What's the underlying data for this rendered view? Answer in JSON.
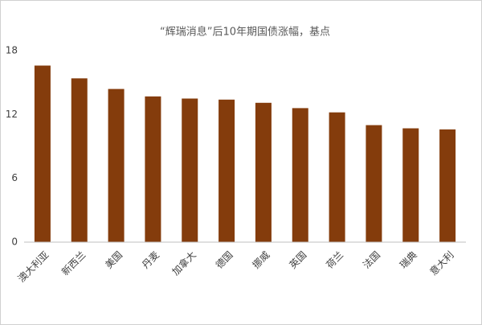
{
  "chart_data": {
    "type": "bar",
    "title": "“辉瑞消息”后10年期国债涨幅，基点",
    "categories": [
      "澳大利亚",
      "新西兰",
      "美国",
      "丹麦",
      "加拿大",
      "德国",
      "挪威",
      "英国",
      "荷兰",
      "法国",
      "瑞典",
      "意大利"
    ],
    "values": [
      16.6,
      15.4,
      14.4,
      13.7,
      13.5,
      13.4,
      13.1,
      12.6,
      12.2,
      11.0,
      10.7,
      10.6
    ],
    "color": "#843c0c",
    "ylim": [
      0,
      18
    ],
    "yticks": [
      0,
      6,
      12,
      18
    ],
    "grid": false
  }
}
